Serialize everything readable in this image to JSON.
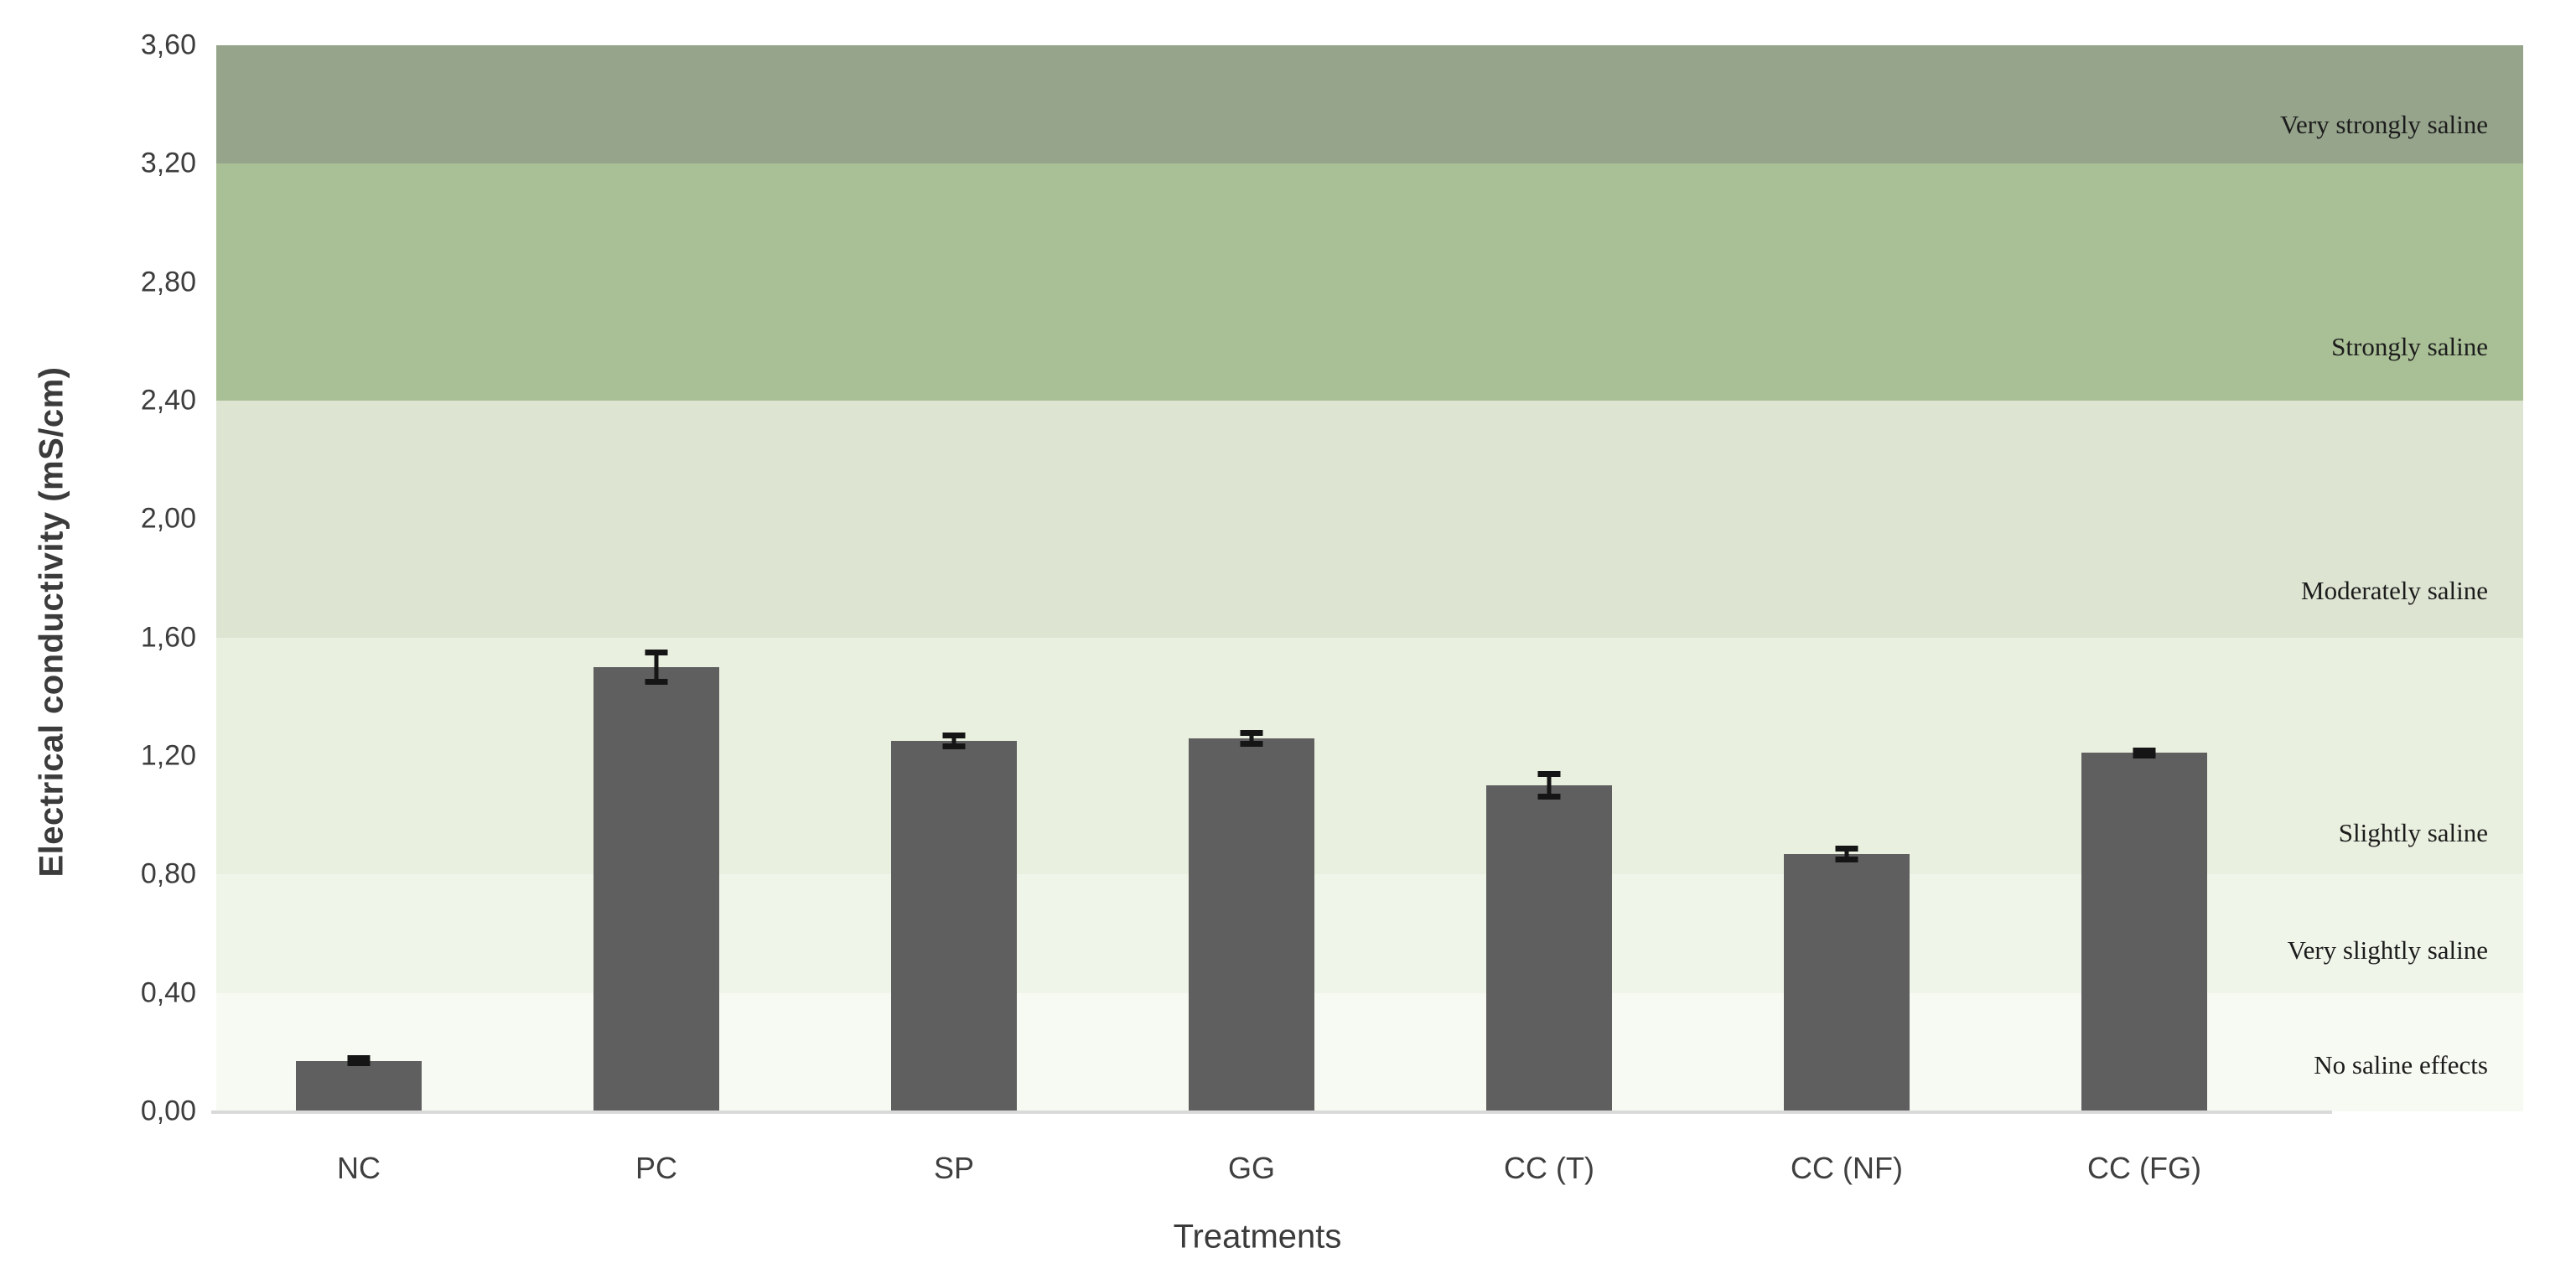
{
  "chart_data": {
    "type": "bar",
    "title": "",
    "xlabel": "Treatments",
    "ylabel": "Electrical conductivity (mS/cm)",
    "categories": [
      "NC",
      "PC",
      "SP",
      "GG",
      "CC (T)",
      "CC (NF)",
      "CC (FG)"
    ],
    "values": [
      0.17,
      1.5,
      1.25,
      1.26,
      1.1,
      0.87,
      1.21
    ],
    "error_bars": [
      0.01,
      0.05,
      0.02,
      0.02,
      0.04,
      0.02,
      0.01
    ],
    "ylim": [
      0.0,
      3.6
    ],
    "ytick_step": 0.4,
    "ytick_labels": [
      "0,00",
      "0,40",
      "0,80",
      "1,20",
      "1,60",
      "2,00",
      "2,40",
      "2,80",
      "3,20",
      "3,60"
    ],
    "decimal_separator": ",",
    "grid": false,
    "legend": "none",
    "bar_color": "#5f5f5f",
    "error_color": "#151515",
    "axis_line_color": "#d9d9d9",
    "salinity_bands": [
      {
        "label": "No saline effects",
        "from": 0.0,
        "to": 0.4,
        "color": "#f7faf2"
      },
      {
        "label": "Very slightly saline",
        "from": 0.4,
        "to": 0.8,
        "color": "#f0f5e9"
      },
      {
        "label": "Slightly saline",
        "from": 0.8,
        "to": 1.6,
        "color": "#e9f0df"
      },
      {
        "label": "Moderately saline",
        "from": 1.6,
        "to": 2.4,
        "color": "#dde4d2"
      },
      {
        "label": "Strongly saline",
        "from": 2.4,
        "to": 3.2,
        "color": "#a9bf95"
      },
      {
        "label": "Very strongly saline",
        "from": 3.2,
        "to": 3.6,
        "color": "#96a48c"
      }
    ]
  }
}
